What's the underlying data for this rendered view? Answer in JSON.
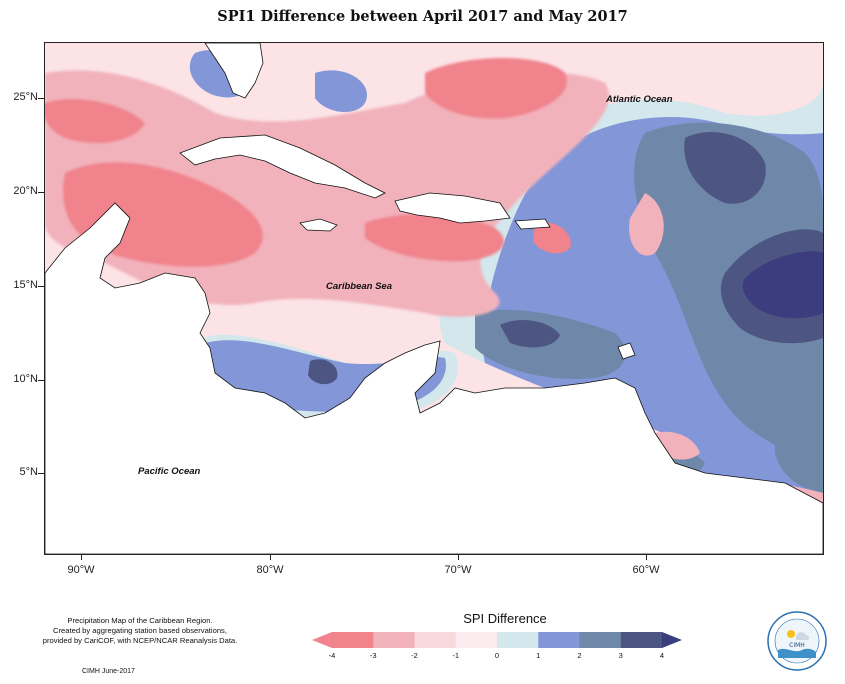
{
  "title": "SPI1 Difference between April 2017 and May 2017",
  "map": {
    "lat_labels": [
      "25°N",
      "20°N",
      "15°N",
      "10°N",
      "5°N"
    ],
    "lon_labels": [
      "90°W",
      "80°W",
      "70°W",
      "60°W"
    ],
    "ocean_labels": {
      "atlantic": "Atlantic Ocean",
      "caribbean": "Caribbean Sea",
      "pacific": "Pacific Ocean"
    }
  },
  "legend": {
    "title": "SPI Difference",
    "ticks": [
      "-4",
      "-3",
      "-2",
      "-1",
      "0",
      "1",
      "2",
      "3",
      "4"
    ],
    "colors": [
      "#f0838c",
      "#f2b2bb",
      "#f9d9de",
      "#fcecef",
      "#d3e7ec",
      "#8296d8",
      "#6f88a9",
      "#4d5683",
      "#3b3d7e"
    ]
  },
  "footer": {
    "note_lines": [
      "Precipitation Map of the Caribbean Region.",
      "Created by aggregating station based observations,",
      "provided by CariCOF, with NCEP/NCAR Reanalysis Data."
    ],
    "credit": "CIMH June-2017",
    "logo_text": "CIMH"
  }
}
